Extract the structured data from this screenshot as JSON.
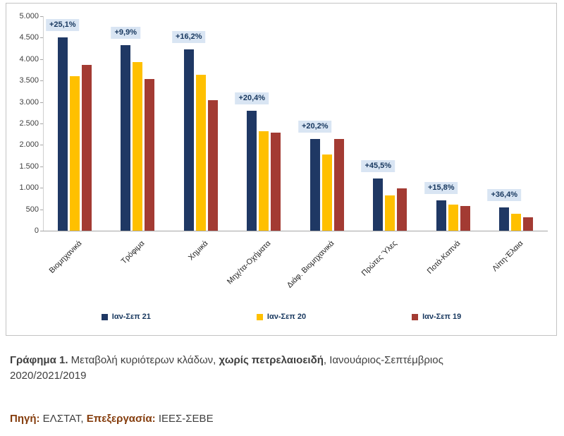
{
  "chart_data": {
    "type": "bar",
    "categories": [
      "Βιομηχανικά",
      "Τρόφιμα",
      "Χημικά",
      "Μηχ/τα-Οχήματα",
      "Διάφ. Βιομηχανικά",
      "Πρώτες Ύλες",
      "Ποτά-Καπνά",
      "Λίπη-Έλαια"
    ],
    "series": [
      {
        "name": "Ιαν-Σεπ 21",
        "color": "#1f3864",
        "values": [
          4510,
          4320,
          4230,
          2790,
          2130,
          1210,
          700,
          545
        ]
      },
      {
        "name": "Ιαν-Σεπ 20",
        "color": "#ffc000",
        "values": [
          3600,
          3930,
          3640,
          2320,
          1770,
          830,
          605,
          400
        ]
      },
      {
        "name": "Ιαν-Σεπ 19",
        "color": "#a33b33",
        "values": [
          3860,
          3530,
          3040,
          2290,
          2130,
          990,
          570,
          310
        ]
      }
    ],
    "annotations": [
      "+25,1%",
      "+9,9%",
      "+16,2%",
      "+20,4%",
      "+20,2%",
      "+45,5%",
      "+15,8%",
      "+36,4%"
    ],
    "ylim": [
      0,
      5000
    ],
    "ytick_labels": [
      "0",
      "500",
      "1.000",
      "1.500",
      "2.000",
      "2.500",
      "3.000",
      "3.500",
      "4.000",
      "4.500",
      "5.000"
    ],
    "title": "",
    "xlabel": "",
    "ylabel": "",
    "grid": false,
    "legend_position": "bottom"
  },
  "caption": {
    "label": "Γράφημα 1.",
    "text_1": " Μεταβολή κυριότερων κλάδων, ",
    "bold_1": "χωρίς πετρελαιοειδή",
    "text_2": ", Ιανουάριος-Σεπτέμβριος 2020/2021/2019"
  },
  "source": {
    "label_1": "Πηγή:",
    "text_1": " ΕΛΣΤΑΤ, ",
    "label_2": "Επεξεργασία:",
    "text_2": " ΙΕΕΣ-ΣΕΒΕ"
  }
}
